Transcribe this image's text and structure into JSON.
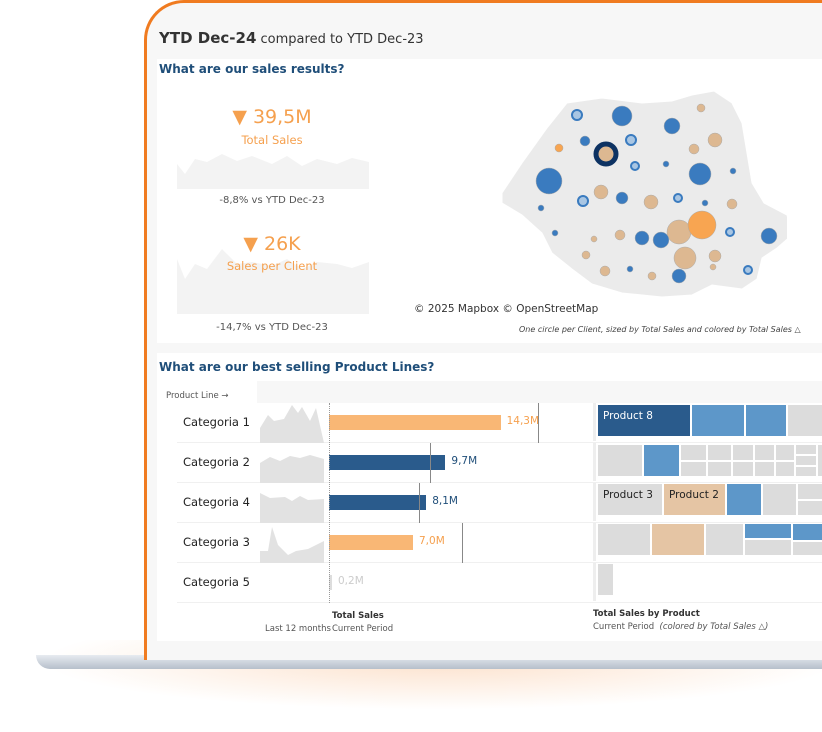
{
  "header": {
    "period": "YTD Dec-24",
    "compare": "compared to YTD Dec-23"
  },
  "sales_results": {
    "question": "What are our sales results?",
    "kpis": [
      {
        "value": "39,5M",
        "label": "Total Sales",
        "comparison": "-8,8% vs YTD Dec-23",
        "trend_icon": "triangle-down-icon"
      },
      {
        "value": "26K",
        "label": "Sales per Client",
        "comparison": "-14,7% vs YTD Dec-23",
        "trend_icon": "triangle-down-icon"
      }
    ],
    "map": {
      "attribution": "© 2025 Mapbox  © OpenStreetMap",
      "caption": "One circle per Client, sized by Total Sales and colored by Total Sales △"
    }
  },
  "product_lines": {
    "question": "What are our best selling Product Lines?",
    "column_header": "Product Line →",
    "footer": {
      "sparkline_label": "Last 12 months",
      "bar_title": "Total Sales",
      "bar_sub": "Current Period",
      "tree_title": "Total Sales by Product",
      "tree_sub": "Current Period",
      "tree_note": "(colored by Total Sales △)"
    },
    "treemap_labels": {
      "p8": "Product 8",
      "p3": "Product 3",
      "p2": "Product 2"
    }
  },
  "colors": {
    "accent": "#f07b20",
    "below_prior": "#f9b775",
    "above_prior": "#2a5b8c",
    "light_blue": "#5d97c9",
    "tan": "#e5c5a4",
    "title_blue": "#1f4e79"
  },
  "chart_data": {
    "type": "bar",
    "categories": [
      "Categoria 1",
      "Categoria 2",
      "Categoria 4",
      "Categoria 3",
      "Categoria 5"
    ],
    "values": [
      14.3,
      9.7,
      8.1,
      7.0,
      0.2
    ],
    "labels": [
      "14,3M",
      "9,7M",
      "8,1M",
      "7,0M",
      "0,2M"
    ],
    "prior_period_reference": [
      17.4,
      8.4,
      7.5,
      11.1,
      null
    ],
    "unit": "M"
  }
}
